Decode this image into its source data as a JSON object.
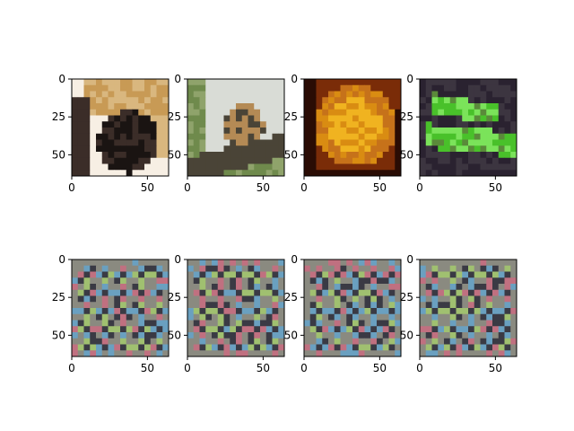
{
  "figure": {
    "rows": 2,
    "cols": 4,
    "background": "#ffffff"
  },
  "chart_data": [
    {
      "type": "heatmap",
      "panel": "input-1",
      "row": 0,
      "col": 0,
      "content": "tan leather shoe (toe cap), dark interior, white background",
      "palette": [
        "#f7efe4",
        "#d9b77f",
        "#c89a55",
        "#3b2d28",
        "#1a1412"
      ],
      "x_ticks": [
        "0",
        "50"
      ],
      "y_ticks": [
        "0",
        "25",
        "50"
      ],
      "xlim": [
        0,
        64
      ],
      "ylim": [
        64,
        0
      ]
    },
    {
      "type": "heatmap",
      "panel": "input-2",
      "row": 0,
      "col": 1,
      "content": "leopard lying on a tree branch, green foliage, pale sky",
      "palette": [
        "#d9dcd6",
        "#8fa36b",
        "#b48a55",
        "#4a4437",
        "#6f8a4c"
      ],
      "x_ticks": [
        "0",
        "50"
      ],
      "y_ticks": [
        "0",
        "25",
        "50"
      ],
      "xlim": [
        0,
        64
      ],
      "ylim": [
        64,
        0
      ]
    },
    {
      "type": "heatmap",
      "panel": "input-3",
      "row": 0,
      "col": 2,
      "content": "close-up of yellow-orange fruit flesh with dark rind",
      "palette": [
        "#f0b320",
        "#d98c12",
        "#7a2c08",
        "#2a0c04",
        "#c6721a"
      ],
      "x_ticks": [
        "0",
        "50"
      ],
      "y_ticks": [
        "0",
        "25",
        "50"
      ],
      "xlim": [
        0,
        64
      ],
      "ylim": [
        64,
        0
      ]
    },
    {
      "type": "heatmap",
      "panel": "input-4",
      "row": 0,
      "col": 3,
      "content": "green fluorescent dots on dark purple background (microscopy)",
      "palette": [
        "#2a2230",
        "#3c3540",
        "#49c12a",
        "#7be35a",
        "#5a8a3a"
      ],
      "x_ticks": [
        "0",
        "50"
      ],
      "y_ticks": [
        "0",
        "25",
        "50"
      ],
      "xlim": [
        0,
        64
      ],
      "ylim": [
        64,
        0
      ]
    },
    {
      "type": "heatmap",
      "panel": "output-1",
      "row": 1,
      "col": 0,
      "content": "gray noisy checkerboard artifact pattern (4x4 grid of blobs)",
      "palette": [
        "#8a8a80",
        "#3a3a44",
        "#6aa0c0",
        "#c07080",
        "#a0c070"
      ],
      "x_ticks": [
        "0",
        "50"
      ],
      "y_ticks": [
        "0",
        "25",
        "50"
      ],
      "xlim": [
        0,
        64
      ],
      "ylim": [
        64,
        0
      ]
    },
    {
      "type": "heatmap",
      "panel": "output-2",
      "row": 1,
      "col": 1,
      "content": "gray noisy checkerboard artifact pattern (4x4 grid of blobs)",
      "palette": [
        "#8a8a80",
        "#3a3a44",
        "#6aa0c0",
        "#c07080",
        "#a0c070"
      ],
      "x_ticks": [
        "0",
        "50"
      ],
      "y_ticks": [
        "0",
        "25",
        "50"
      ],
      "xlim": [
        0,
        64
      ],
      "ylim": [
        64,
        0
      ]
    },
    {
      "type": "heatmap",
      "panel": "output-3",
      "row": 1,
      "col": 2,
      "content": "gray noisy checkerboard artifact pattern (4x4 grid of blobs)",
      "palette": [
        "#8a8a80",
        "#3a3a44",
        "#6aa0c0",
        "#c07080",
        "#a0c070"
      ],
      "x_ticks": [
        "0",
        "50"
      ],
      "y_ticks": [
        "0",
        "25",
        "50"
      ],
      "xlim": [
        0,
        64
      ],
      "ylim": [
        64,
        0
      ]
    },
    {
      "type": "heatmap",
      "panel": "output-4",
      "row": 1,
      "col": 3,
      "content": "gray noisy checkerboard artifact pattern (4x4 grid of blobs)",
      "palette": [
        "#8a8a80",
        "#3a3a44",
        "#6aa0c0",
        "#c07080",
        "#a0c070"
      ],
      "x_ticks": [
        "0",
        "50"
      ],
      "y_ticks": [
        "0",
        "25",
        "50"
      ],
      "xlim": [
        0,
        64
      ],
      "ylim": [
        64,
        0
      ]
    }
  ]
}
